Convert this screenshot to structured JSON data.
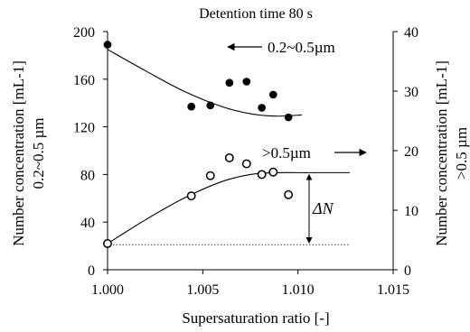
{
  "chart_data": {
    "type": "scatter",
    "title": "Detention time 80 s",
    "xlabel": "Supersaturation ratio [-]",
    "ylabel_left": [
      "Number concentration [mL-1]",
      "0.2~0.5 µm"
    ],
    "ylabel_right": [
      "Number concentration [mL-1]",
      ">0.5 µm"
    ],
    "xlim": [
      1.0,
      1.015
    ],
    "ylim_left": [
      0,
      200
    ],
    "ylim_right": [
      0,
      40
    ],
    "x_ticks": [
      "1.000",
      "1.005",
      "1.010",
      "1.015"
    ],
    "y_ticks_left": [
      "0",
      "40",
      "80",
      "120",
      "160",
      "200"
    ],
    "y_ticks_right": [
      "0",
      "10",
      "20",
      "30",
      "40"
    ],
    "series": [
      {
        "name": "0.2~0.5µm",
        "marker": "filled-circle",
        "axis": "left",
        "points": [
          [
            1.0,
            189
          ],
          [
            1.0044,
            137
          ],
          [
            1.0054,
            138
          ],
          [
            1.0064,
            157
          ],
          [
            1.0073,
            158
          ],
          [
            1.0081,
            136
          ],
          [
            1.0087,
            147
          ],
          [
            1.0095,
            128
          ]
        ],
        "trend": [
          [
            1.0,
            185
          ],
          [
            1.002,
            167
          ],
          [
            1.004,
            150
          ],
          [
            1.006,
            137
          ],
          [
            1.0075,
            131
          ],
          [
            1.0088,
            129
          ],
          [
            1.0102,
            130
          ]
        ]
      },
      {
        "name": ">0.5µm",
        "marker": "open-circle",
        "axis": "left",
        "points": [
          [
            1.0,
            22
          ],
          [
            1.0044,
            62
          ],
          [
            1.0054,
            79
          ],
          [
            1.0064,
            94
          ],
          [
            1.0073,
            89
          ],
          [
            1.0081,
            80
          ],
          [
            1.0087,
            82
          ],
          [
            1.0095,
            63
          ]
        ],
        "trend": [
          [
            1.0,
            22
          ],
          [
            1.002,
            42
          ],
          [
            1.004,
            60
          ],
          [
            1.006,
            74
          ],
          [
            1.0075,
            80
          ],
          [
            1.0088,
            81.5
          ],
          [
            1.0105,
            81.5
          ]
        ]
      }
    ],
    "annotations": {
      "label_small": "0.2~0.5µm",
      "label_large": ">0.5µm",
      "delta": "ΔN",
      "baseline_y": 21,
      "plateau_y": 81.5,
      "delta_x": 1.012
    },
    "grid": false
  }
}
